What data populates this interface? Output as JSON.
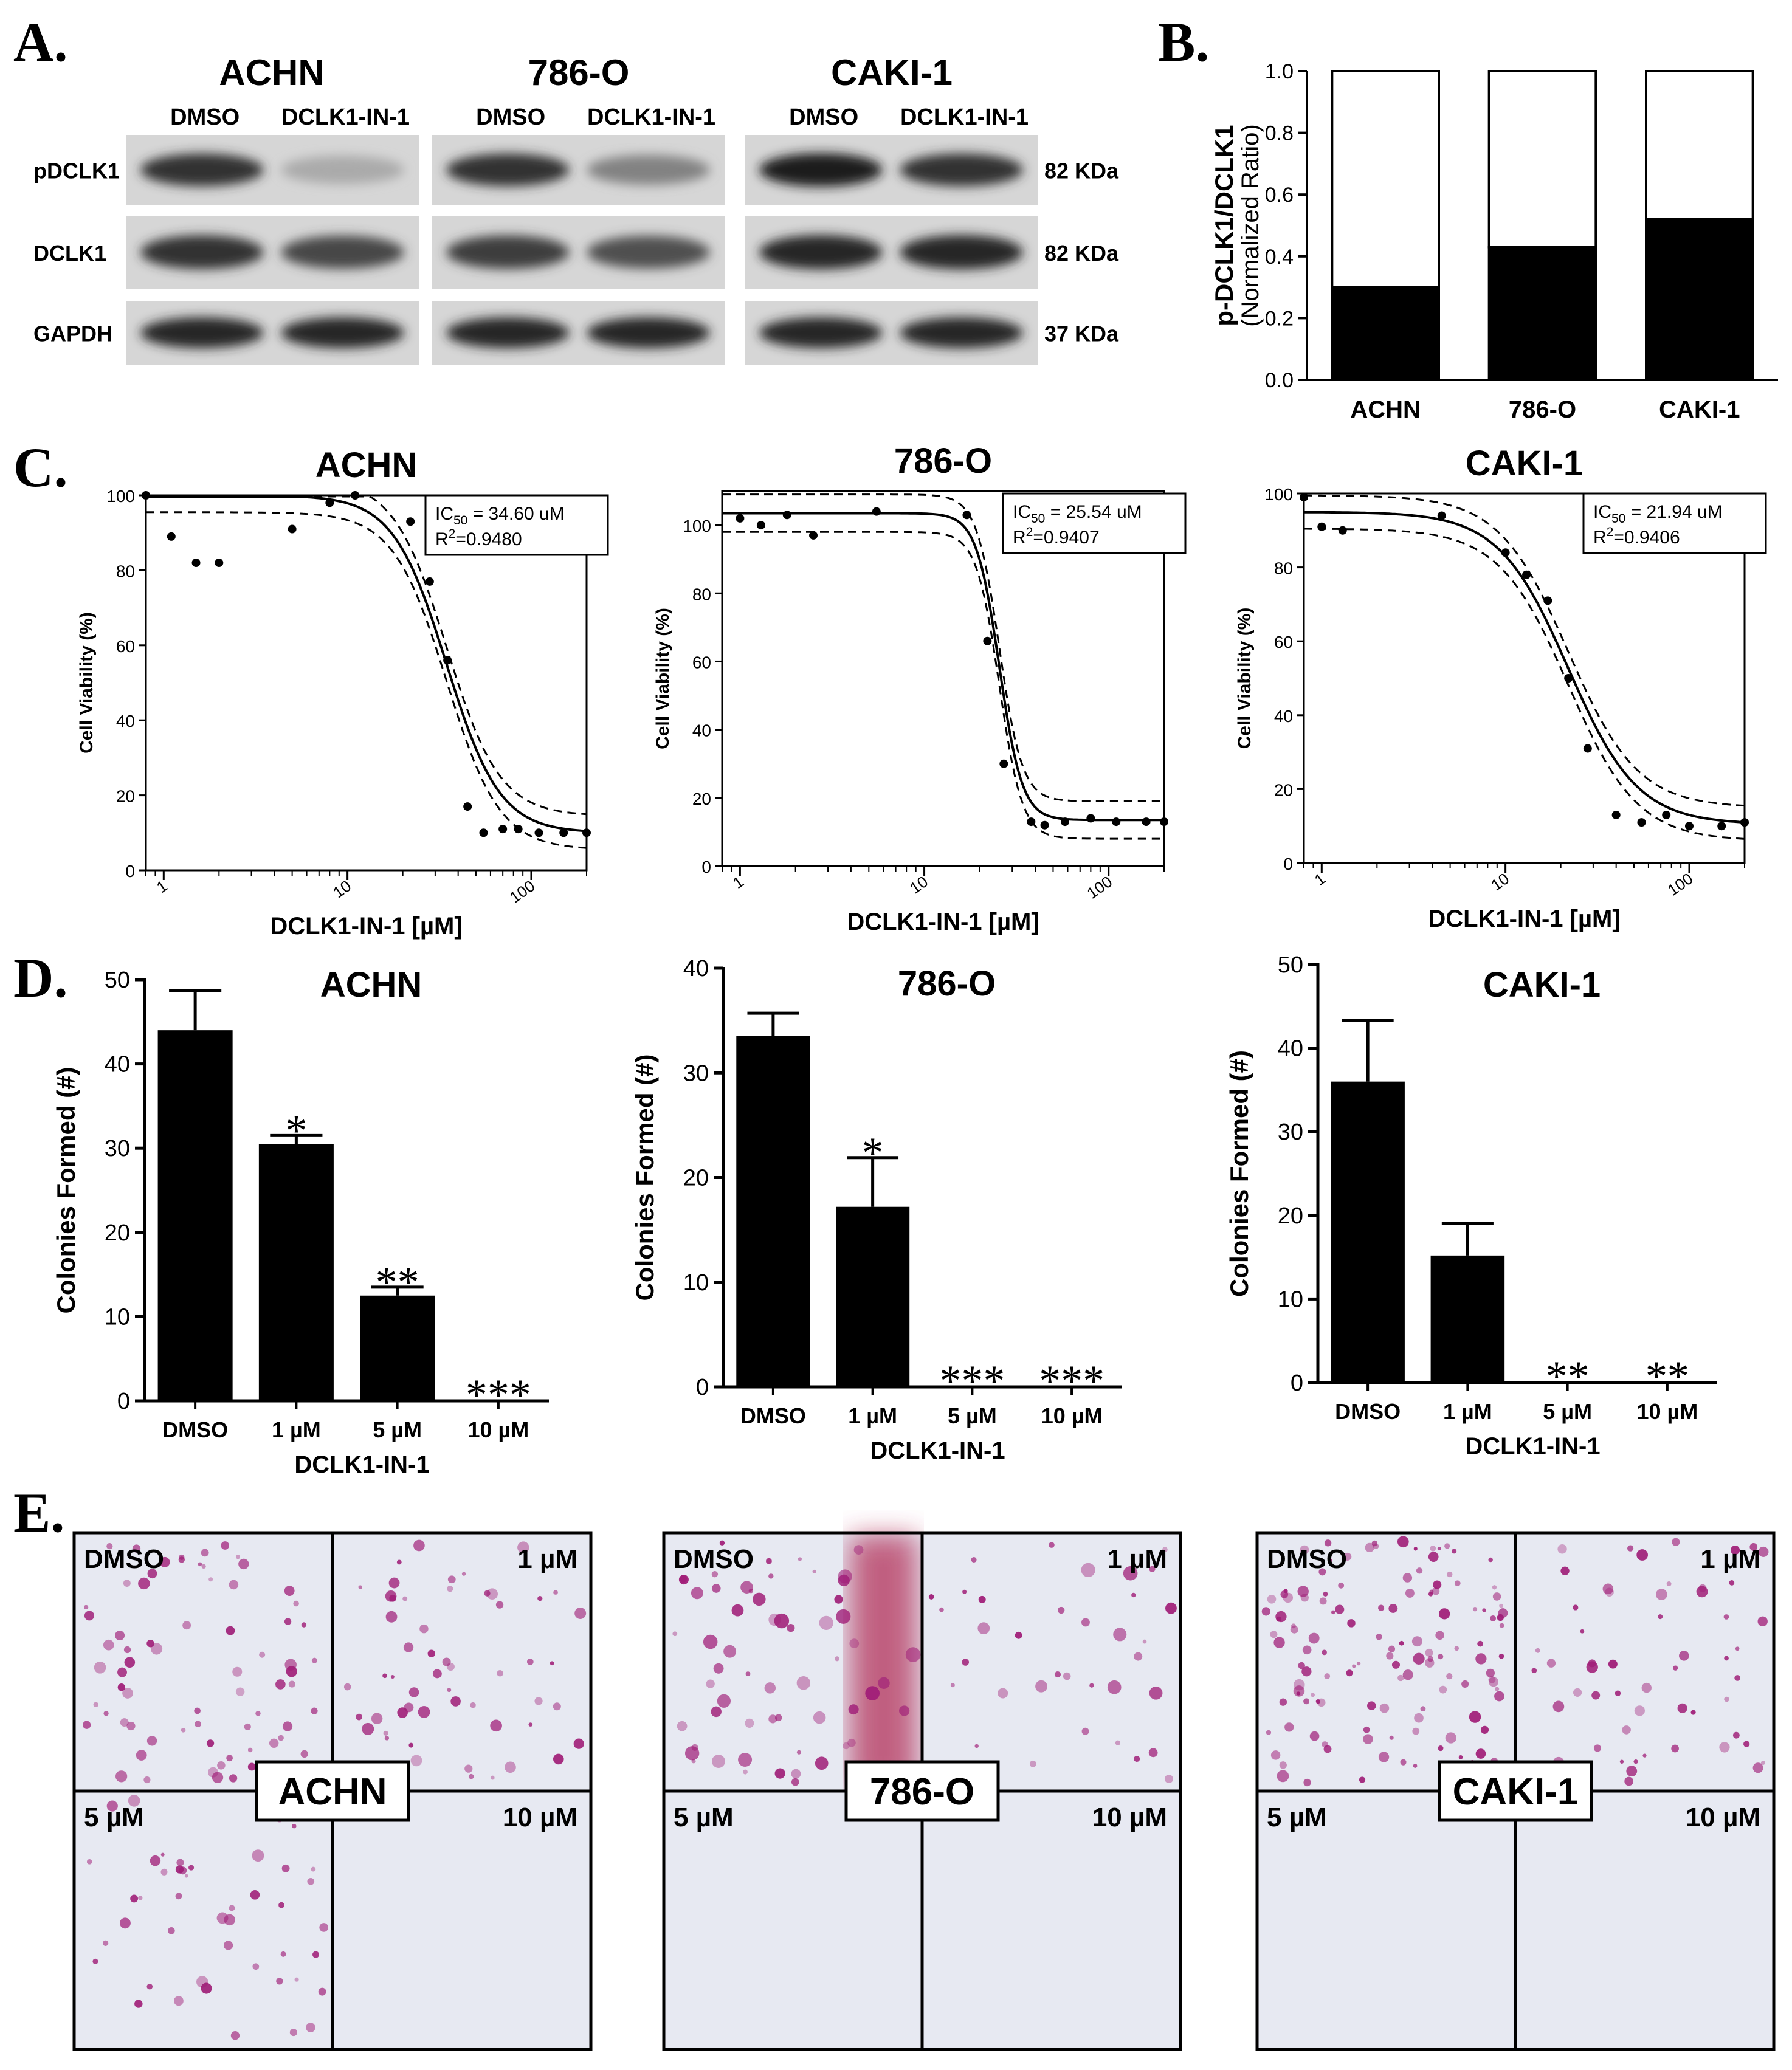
{
  "panel_letters": {
    "a": "A.",
    "b": "B.",
    "c": "C.",
    "d": "D.",
    "e": "E."
  },
  "western": {
    "cell_lines": [
      "ACHN",
      "786-O",
      "CAKI-1"
    ],
    "lanes": [
      "DMSO",
      "DCLK1-IN-1"
    ],
    "proteins": [
      "pDCLK1",
      "DCLK1",
      "GAPDH"
    ],
    "sizes": [
      "82 KDa",
      "82 KDa",
      "37 KDa"
    ],
    "band_intensity": [
      [
        [
          0.85,
          0.25
        ],
        [
          0.85,
          0.75
        ],
        [
          0.9,
          0.9
        ]
      ],
      [
        [
          0.85,
          0.45
        ],
        [
          0.8,
          0.7
        ],
        [
          0.9,
          0.9
        ]
      ],
      [
        [
          0.95,
          0.85
        ],
        [
          0.9,
          0.9
        ],
        [
          0.9,
          0.9
        ]
      ]
    ]
  },
  "chart_data": [
    {
      "id": "B",
      "type": "bar",
      "stacked": true,
      "categories": [
        "ACHN",
        "786-O",
        "CAKI-1"
      ],
      "series": [
        {
          "values": [
            0.3,
            0.43,
            0.52
          ],
          "color": "#000000"
        },
        {
          "values": [
            0.7,
            0.57,
            0.48
          ],
          "color": "#ffffff"
        }
      ],
      "ylabel": "p-DCLK1/DCLK1",
      "ylabel2": "(Normalized Ratio)",
      "ylim": [
        0,
        1.0
      ],
      "yticks": [
        "0.0",
        "0.2",
        "0.4",
        "0.6",
        "0.8",
        "1.0"
      ]
    },
    {
      "id": "C1",
      "type": "scatter",
      "title": "ACHN",
      "xlabel": "DCLK1-IN-1 [µM]",
      "ylabel": "Cell Viability (%)",
      "xscale": "log",
      "xlim": [
        0.8,
        200
      ],
      "ylim": [
        0,
        100
      ],
      "yticks": [
        "0",
        "20",
        "40",
        "60",
        "80",
        "100"
      ],
      "xticks": [
        {
          "v": 1,
          "label": "1"
        },
        {
          "v": 10,
          "label": "10"
        },
        {
          "v": 100,
          "label": "100"
        }
      ],
      "points": [
        [
          0.8,
          100
        ],
        [
          1.1,
          89
        ],
        [
          1.5,
          82
        ],
        [
          2,
          82
        ],
        [
          5,
          91
        ],
        [
          8,
          98
        ],
        [
          11,
          100
        ],
        [
          22,
          93
        ],
        [
          28,
          77
        ],
        [
          35,
          56
        ],
        [
          45,
          17
        ],
        [
          55,
          10
        ],
        [
          70,
          11
        ],
        [
          85,
          11
        ],
        [
          110,
          10
        ],
        [
          150,
          10
        ],
        [
          200,
          10
        ]
      ],
      "fit": {
        "top": 100,
        "bottom": 10,
        "ic50": 34.6,
        "hill": 3.0,
        "band": 4.5
      },
      "annotation": {
        "ic50_prefix": "IC",
        "ic50_sub": "50",
        "ic50_value": " = 34.60 uM",
        "r2_prefix": "R",
        "r2_sup": "2",
        "r2_value": "=0.9480"
      }
    },
    {
      "id": "C2",
      "type": "scatter",
      "title": "786-O",
      "xlabel": "DCLK1-IN-1 [µM]",
      "ylabel": "Cell Viability (%)",
      "xscale": "log",
      "xlim": [
        0.8,
        200
      ],
      "ylim": [
        0,
        110
      ],
      "yticks": [
        "0",
        "20",
        "40",
        "60",
        "80",
        "100"
      ],
      "xticks": [
        {
          "v": 1,
          "label": "1"
        },
        {
          "v": 10,
          "label": "10"
        },
        {
          "v": 100,
          "label": "100"
        }
      ],
      "points": [
        [
          1,
          102
        ],
        [
          1.3,
          100
        ],
        [
          1.8,
          103
        ],
        [
          2.5,
          97
        ],
        [
          5.5,
          104
        ],
        [
          17,
          103
        ],
        [
          22,
          66
        ],
        [
          27,
          30
        ],
        [
          38,
          13
        ],
        [
          45,
          12
        ],
        [
          58,
          13
        ],
        [
          80,
          14
        ],
        [
          110,
          13
        ],
        [
          160,
          13
        ],
        [
          200,
          13
        ]
      ],
      "fit": {
        "top": 103.5,
        "bottom": 13.5,
        "ic50": 25.54,
        "hill": 7.0,
        "band": 5.5
      },
      "annotation": {
        "ic50_prefix": "IC",
        "ic50_sub": "50",
        "ic50_value": " = 25.54 uM",
        "r2_prefix": "R",
        "r2_sup": "2",
        "r2_value": "=0.9407"
      }
    },
    {
      "id": "C3",
      "type": "scatter",
      "title": "CAKI-1",
      "xlabel": "DCLK1-IN-1 [µM]",
      "ylabel": "Cell Viability (%)",
      "xscale": "log",
      "xlim": [
        0.8,
        200
      ],
      "ylim": [
        0,
        100
      ],
      "yticks": [
        "0",
        "20",
        "40",
        "60",
        "80",
        "100"
      ],
      "xticks": [
        {
          "v": 1,
          "label": "1"
        },
        {
          "v": 10,
          "label": "10"
        },
        {
          "v": 100,
          "label": "100"
        }
      ],
      "points": [
        [
          0.8,
          99
        ],
        [
          1,
          91
        ],
        [
          1.3,
          90
        ],
        [
          4.5,
          94
        ],
        [
          10,
          84
        ],
        [
          13,
          78
        ],
        [
          17,
          71
        ],
        [
          22,
          50
        ],
        [
          28,
          31
        ],
        [
          40,
          13
        ],
        [
          55,
          11
        ],
        [
          75,
          13
        ],
        [
          100,
          10
        ],
        [
          150,
          10
        ],
        [
          200,
          11
        ]
      ],
      "fit": {
        "top": 95,
        "bottom": 10.5,
        "ic50": 21.94,
        "hill": 2.3,
        "band": 4.5
      },
      "annotation": {
        "ic50_prefix": "IC",
        "ic50_sub": "50",
        "ic50_value": " = 21.94 uM",
        "r2_prefix": "R",
        "r2_sup": "2",
        "r2_value": "=0.9406"
      }
    },
    {
      "id": "D1",
      "type": "bar",
      "title": "ACHN",
      "categories": [
        "DMSO",
        "1 µM",
        "5 µM",
        "10 µM"
      ],
      "values": [
        44,
        30.5,
        12.5,
        0
      ],
      "errors": [
        4.7,
        1.0,
        1.0,
        0
      ],
      "significance": [
        "",
        "*",
        "**",
        "***"
      ],
      "xlabel": "DCLK1-IN-1",
      "ylabel": "Colonies Formed (#)",
      "ylim": [
        0,
        50
      ],
      "yticks": [
        "0",
        "10",
        "20",
        "30",
        "40",
        "50"
      ]
    },
    {
      "id": "D2",
      "type": "bar",
      "title": "786-O",
      "categories": [
        "DMSO",
        "1 µM",
        "5 µM",
        "10 µM"
      ],
      "values": [
        33.5,
        17.2,
        0,
        0
      ],
      "errors": [
        2.2,
        4.7,
        0,
        0
      ],
      "significance": [
        "",
        "*",
        "***",
        "***"
      ],
      "xlabel": "DCLK1-IN-1",
      "ylabel": "Colonies Formed (#)",
      "ylim": [
        0,
        40
      ],
      "yticks": [
        "0",
        "10",
        "20",
        "30",
        "40"
      ]
    },
    {
      "id": "D3",
      "type": "bar",
      "title": "CAKI-1",
      "categories": [
        "DMSO",
        "1 µM",
        "5 µM",
        "10 µM"
      ],
      "values": [
        36,
        15.2,
        0,
        0
      ],
      "errors": [
        7.3,
        3.8,
        0,
        0
      ],
      "significance": [
        "",
        "",
        "**",
        "**"
      ],
      "xlabel": "DCLK1-IN-1",
      "ylabel": "Colonies Formed (#)",
      "ylim": [
        0,
        50
      ],
      "yticks": [
        "0",
        "10",
        "20",
        "30",
        "40",
        "50"
      ]
    }
  ],
  "colony_panels": {
    "cell_lines": [
      "ACHN",
      "786-O",
      "CAKI-1"
    ],
    "quadrant_labels": [
      "DMSO",
      "1 µM",
      "5 µM",
      "10 µM"
    ],
    "background": "#e7e9f2",
    "stain": "#a01e78",
    "density": [
      [
        70,
        55,
        45,
        0
      ],
      [
        60,
        35,
        0,
        0
      ],
      [
        130,
        55,
        0,
        0
      ]
    ]
  }
}
